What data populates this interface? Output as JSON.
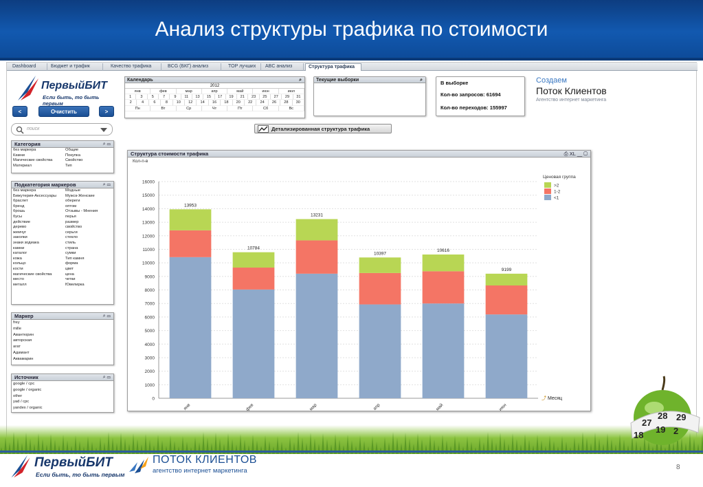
{
  "slide": {
    "title": "Анализ структуры трафика по стоимости",
    "page_number": "8"
  },
  "tabs": [
    {
      "label": "Dashboard",
      "active": false
    },
    {
      "label": "Бюджет и трафик",
      "active": false
    },
    {
      "label": "Качество трафика",
      "active": false
    },
    {
      "label": "BCG (БКГ) анализ",
      "active": false
    },
    {
      "label": "TOP лучших",
      "active": false
    },
    {
      "label": "ABC анализ",
      "active": false
    },
    {
      "label": "Структура трафика",
      "active": true
    }
  ],
  "logo": {
    "brand": "ПервыйБИТ",
    "slogan": "Если быть, то быть первым"
  },
  "nav": {
    "back": "<",
    "clear": "Очистить",
    "forward": ">"
  },
  "search": {
    "placeholder": "поиск"
  },
  "category": {
    "title": "Категория",
    "rows": [
      [
        "без маркера",
        "Общие"
      ],
      [
        "Камни",
        "Покупка"
      ],
      [
        "Магические свойства",
        "Свойство"
      ],
      [
        "Материал",
        "Тип"
      ]
    ]
  },
  "subcategory": {
    "title": "Подкатегория маркеров",
    "rows": [
      [
        "без маркера",
        "Модные"
      ],
      [
        "Бижутерия-Аксессуары",
        "Мужск-Женские"
      ],
      [
        "браслет",
        "обереги"
      ],
      [
        "бренд",
        "оптом"
      ],
      [
        "брошь",
        "Отзывы - Мнения"
      ],
      [
        "бусы",
        "перья"
      ],
      [
        "действие",
        "размер"
      ],
      [
        "дерево",
        "свойство"
      ],
      [
        "жемчуг",
        "серьги"
      ],
      [
        "заколки",
        "стекло"
      ],
      [
        "знаки зодиака",
        "стиль"
      ],
      [
        "камни",
        "страна"
      ],
      [
        "каталог",
        "сумки"
      ],
      [
        "кожа",
        "Тип камня"
      ],
      [
        "кольцо",
        "форма"
      ],
      [
        "кости",
        "цвет"
      ],
      [
        "магические свойства",
        "цена"
      ],
      [
        "место",
        "четки"
      ],
      [
        "металл",
        "Ювелирка"
      ]
    ]
  },
  "marker": {
    "title": "Маркер",
    "items": [
      "frey",
      "mille",
      "Авантюрин",
      "авторская",
      "агат",
      "Адамант",
      "Аквамарин"
    ]
  },
  "sources": {
    "title": "Источник",
    "items": [
      "google / cpc",
      "google / organic",
      "other",
      "yad / cpc",
      "yandex / organic"
    ]
  },
  "calendar": {
    "title": "Календарь",
    "year": "2012",
    "months": [
      "янв",
      "фев",
      "мар",
      "апр",
      "май",
      "июн",
      "июл"
    ],
    "days_row1": [
      "1",
      "3",
      "5",
      "7",
      "9",
      "11",
      "13",
      "15",
      "17",
      "19",
      "21",
      "23",
      "25",
      "27",
      "29",
      "31"
    ],
    "days_row2": [
      "2",
      "4",
      "6",
      "8",
      "10",
      "12",
      "14",
      "16",
      "18",
      "20",
      "22",
      "24",
      "26",
      "28",
      "30"
    ],
    "weekdays": [
      "Пн",
      "Вт",
      "Ср",
      "Чт",
      "Пт",
      "Сб",
      "Вс"
    ]
  },
  "current_selections": {
    "title": "Текущие выборки"
  },
  "selection_stats": {
    "title": "В выборке",
    "queries": "Кол-во запросов: 61694",
    "visits": "Кол-во переходов: 155997"
  },
  "detail_button": {
    "label": "Детализированная структура трафика"
  },
  "right_logo": {
    "line1": "Создаем",
    "line2": "Поток Клиентов",
    "line3": "Агентство интернет маркетинга"
  },
  "chart_window": {
    "title": "Структура стоимости трафика",
    "y_label": "Кол-п-в",
    "x_dimension": "Месяц"
  },
  "chart_data": {
    "type": "bar",
    "stacked": true,
    "categories": [
      "янв",
      "фев",
      "мар",
      "апр",
      "май",
      "июн"
    ],
    "series": [
      {
        "name": "<1",
        "color": "#8fa9ca",
        "values": [
          10420,
          8030,
          9200,
          6930,
          7000,
          6190
        ]
      },
      {
        "name": "1-2",
        "color": "#f47565",
        "values": [
          1980,
          1620,
          2460,
          2320,
          2380,
          2140
        ]
      },
      {
        "name": ">2",
        "color": "#b8d654",
        "values": [
          1553,
          1134,
          1571,
          1147,
          1236,
          869
        ]
      }
    ],
    "totals": [
      13953,
      10784,
      13231,
      10397,
      10616,
      9199
    ],
    "legend_title": "Ценовая группа",
    "legend_labels": [
      ">2",
      "1-2",
      "<1"
    ],
    "legend_colors": [
      "#b8d654",
      "#f47565",
      "#8fa9ca"
    ],
    "ylim": [
      0,
      16000
    ],
    "yticks": [
      0,
      1000,
      2000,
      3000,
      4000,
      5000,
      6000,
      7000,
      8000,
      9000,
      10000,
      11000,
      12000,
      13000,
      14000,
      15000,
      16000
    ],
    "grid": true,
    "legend_position": "right"
  },
  "footer": {
    "logo1_brand": "ПервыйБИТ",
    "logo1_slogan": "Если быть, то быть первым",
    "logo2_line1": "ПОТОК КЛИЕНТОВ",
    "logo2_line2": "агентство интернет маркетинга"
  }
}
